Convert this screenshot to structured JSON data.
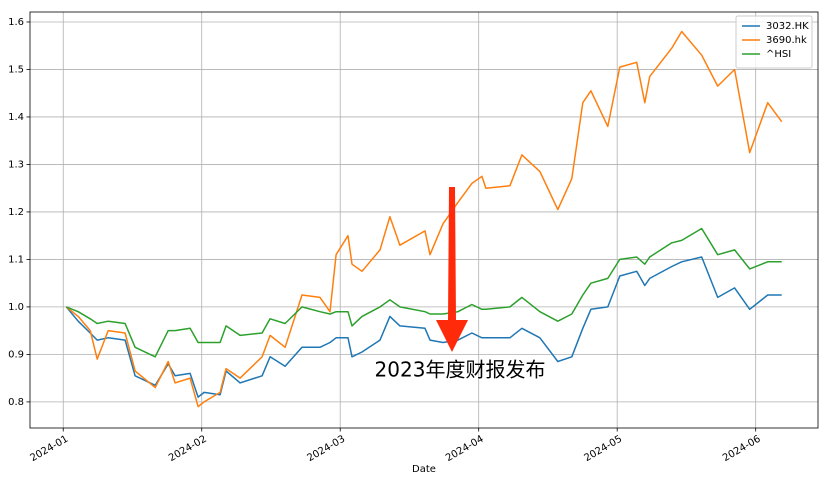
{
  "chart_data": {
    "type": "line",
    "xlabel": "Date",
    "x": [
      1.022,
      1.108,
      1.195,
      1.245,
      1.325,
      1.447,
      1.519,
      1.664,
      1.758,
      1.808,
      1.916,
      1.974,
      2.017,
      2.133,
      2.176,
      2.277,
      2.436,
      2.494,
      2.602,
      2.724,
      2.854,
      2.926,
      2.97,
      3.056,
      3.085,
      3.157,
      3.287,
      3.359,
      3.431,
      3.612,
      3.648,
      3.742,
      3.85,
      3.951,
      4.023,
      4.052,
      4.225,
      4.312,
      4.442,
      4.571,
      4.672,
      4.752,
      4.81,
      4.932,
      5.019,
      5.141,
      5.199,
      5.235,
      5.394,
      5.466,
      5.61,
      5.726,
      5.848,
      5.957,
      6.087,
      6.188
    ],
    "series": [
      {
        "name": "3032.HK",
        "color": "#1f77b4",
        "values": [
          1.0,
          0.97,
          0.945,
          0.93,
          0.935,
          0.93,
          0.855,
          0.835,
          0.88,
          0.855,
          0.86,
          0.81,
          0.82,
          0.815,
          0.865,
          0.84,
          0.855,
          0.895,
          0.875,
          0.915,
          0.915,
          0.925,
          0.935,
          0.935,
          0.895,
          0.905,
          0.93,
          0.98,
          0.96,
          0.955,
          0.93,
          0.925,
          0.93,
          0.945,
          0.935,
          0.935,
          0.935,
          0.955,
          0.935,
          0.885,
          0.895,
          0.955,
          0.995,
          1.0,
          1.065,
          1.075,
          1.045,
          1.06,
          1.085,
          1.095,
          1.105,
          1.02,
          1.04,
          0.995,
          1.025,
          1.025
        ]
      },
      {
        "name": "3690.hk",
        "color": "#ff7f0e",
        "values": [
          1.0,
          0.98,
          0.95,
          0.89,
          0.95,
          0.945,
          0.865,
          0.83,
          0.885,
          0.84,
          0.85,
          0.79,
          0.8,
          0.82,
          0.87,
          0.85,
          0.895,
          0.94,
          0.915,
          1.025,
          1.02,
          0.99,
          1.11,
          1.15,
          1.09,
          1.075,
          1.12,
          1.19,
          1.13,
          1.16,
          1.11,
          1.175,
          1.22,
          1.26,
          1.275,
          1.25,
          1.255,
          1.32,
          1.285,
          1.205,
          1.27,
          1.43,
          1.455,
          1.38,
          1.505,
          1.515,
          1.43,
          1.485,
          1.545,
          1.58,
          1.53,
          1.465,
          1.5,
          1.325,
          1.43,
          1.39
        ]
      },
      {
        "name": "^HSI",
        "color": "#2ca02c",
        "values": [
          1.0,
          0.99,
          0.975,
          0.965,
          0.97,
          0.965,
          0.915,
          0.895,
          0.95,
          0.95,
          0.955,
          0.925,
          0.925,
          0.925,
          0.96,
          0.94,
          0.945,
          0.975,
          0.965,
          1.0,
          0.99,
          0.985,
          0.99,
          0.99,
          0.96,
          0.98,
          1.0,
          1.015,
          1.0,
          0.99,
          0.985,
          0.985,
          0.99,
          1.005,
          0.995,
          0.995,
          1.0,
          1.02,
          0.99,
          0.97,
          0.985,
          1.025,
          1.05,
          1.06,
          1.1,
          1.105,
          1.09,
          1.105,
          1.135,
          1.14,
          1.165,
          1.11,
          1.12,
          1.08,
          1.095,
          1.095
        ]
      }
    ],
    "xlim": [
      0.76,
      6.45
    ],
    "xticks": [
      {
        "value": 1,
        "label": "2024-01"
      },
      {
        "value": 2,
        "label": "2024-02"
      },
      {
        "value": 3,
        "label": "2024-03"
      },
      {
        "value": 4,
        "label": "2024-04"
      },
      {
        "value": 5,
        "label": "2024-05"
      },
      {
        "value": 6,
        "label": "2024-06"
      }
    ],
    "ylim": [
      0.745,
      1.621
    ],
    "yticks": [
      0.8,
      0.9,
      {
        "value": 1,
        "label": "1.0"
      },
      1.1,
      1.2,
      1.3,
      1.4,
      1.5,
      1.6
    ],
    "grid": true,
    "legend": "upper right",
    "annotation": {
      "text": "2023年度财报发布",
      "color": "#ee2a0a"
    }
  }
}
